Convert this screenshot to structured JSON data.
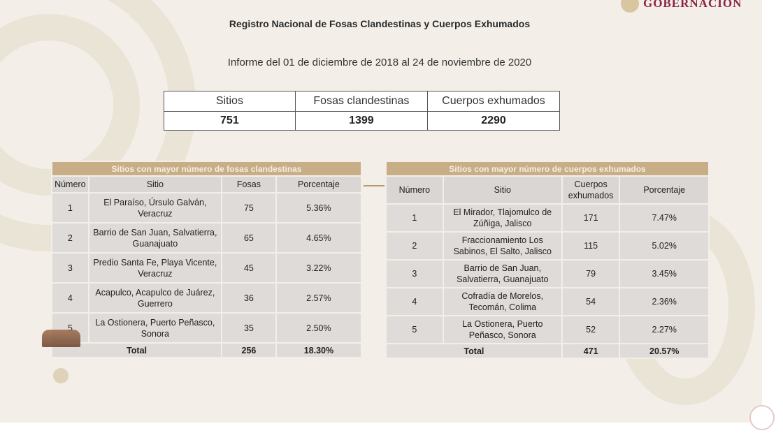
{
  "header": {
    "title": "Registro Nacional de Fosas Clandestinas y Cuerpos Exhumados",
    "subtitle": "Informe del 01 de diciembre de 2018 al 24 de noviembre de 2020",
    "logo_text": "GOBERNACIÓN"
  },
  "summary": {
    "headers": [
      "Sitios",
      "Fosas clandestinas",
      "Cuerpos exhumados"
    ],
    "values": [
      "751",
      "1399",
      "2290"
    ]
  },
  "fosas_table": {
    "title": "Sitios con mayor número de fosas clandestinas",
    "headers": [
      "Número",
      "Sitio",
      "Fosas",
      "Porcentaje"
    ],
    "rows": [
      [
        "1",
        "El Paraíso, Úrsulo Galván, Veracruz",
        "75",
        "5.36%"
      ],
      [
        "2",
        "Barrio de San Juan, Salvatierra, Guanajuato",
        "65",
        "4.65%"
      ],
      [
        "3",
        "Predio Santa Fe, Playa Vicente, Veracruz",
        "45",
        "3.22%"
      ],
      [
        "4",
        "Acapulco, Acapulco de Juárez, Guerrero",
        "36",
        "2.57%"
      ],
      [
        "5",
        "La Ostionera, Puerto Peñasco, Sonora",
        "35",
        "2.50%"
      ]
    ],
    "total": [
      "Total",
      "256",
      "18.30%"
    ]
  },
  "cuerpos_table": {
    "title": "Sitios con mayor número de cuerpos exhumados",
    "headers": [
      "Número",
      "Sitio",
      "Cuerpos exhumados",
      "Porcentaje"
    ],
    "rows": [
      [
        "1",
        "El Mirador, Tlajomulco de Zúñiga, Jalisco",
        "171",
        "7.47%"
      ],
      [
        "2",
        "Fraccionamiento Los Sabinos, El Salto, Jalisco",
        "115",
        "5.02%"
      ],
      [
        "3",
        "Barrio de San Juan, Salvatierra, Guanajuato",
        "79",
        "3.45%"
      ],
      [
        "4",
        "Cofradía de Morelos, Tecomán, Colima",
        "54",
        "2.36%"
      ],
      [
        "5",
        "La Ostionera, Puerto Peñasco, Sonora",
        "52",
        "2.27%"
      ]
    ],
    "total": [
      "Total",
      "471",
      "20.57%"
    ]
  },
  "colors": {
    "band": "#c8ae86",
    "background": "#f3efe8",
    "cell": "#dedbd8",
    "logo": "#8a2446"
  }
}
